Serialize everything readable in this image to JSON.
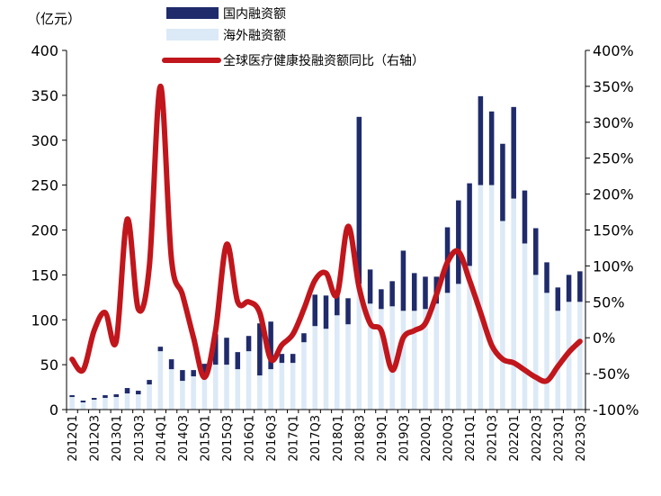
{
  "chart_data": {
    "type": "bar+line",
    "unit_label": "（亿元）",
    "categories": [
      "2012Q1",
      "2012Q2",
      "2012Q3",
      "2012Q4",
      "2013Q1",
      "2013Q2",
      "2013Q3",
      "2013Q4",
      "2014Q1",
      "2014Q2",
      "2014Q3",
      "2014Q4",
      "2015Q1",
      "2015Q2",
      "2015Q3",
      "2015Q4",
      "2016Q1",
      "2016Q2",
      "2016Q3",
      "2016Q4",
      "2017Q1",
      "2017Q2",
      "2017Q3",
      "2017Q4",
      "2018Q1",
      "2018Q2",
      "2018Q3",
      "2018Q4",
      "2019Q1",
      "2019Q2",
      "2019Q3",
      "2019Q4",
      "2020Q1",
      "2020Q2",
      "2020Q3",
      "2020Q4",
      "2021Q1",
      "2021Q2",
      "2021Q3",
      "2021Q4",
      "2022Q1",
      "2022Q2",
      "2022Q3",
      "2022Q4",
      "2023Q1",
      "2023Q2",
      "2023Q3"
    ],
    "x_tick_labels": [
      "2012Q1",
      "2012Q3",
      "2013Q1",
      "2013Q3",
      "2014Q1",
      "2014Q3",
      "2015Q1",
      "2015Q3",
      "2016Q1",
      "2016Q3",
      "2017Q1",
      "2017Q3",
      "2018Q1",
      "2018Q3",
      "2019Q1",
      "2019Q3",
      "2020Q1",
      "2020Q3",
      "2021Q1",
      "2021Q3",
      "2022Q1",
      "2022Q3",
      "2023Q1",
      "2023Q3"
    ],
    "series": [
      {
        "name": "海外融资额",
        "kind": "bar-base",
        "color": "#dce9f6",
        "values": [
          14,
          8,
          11,
          13,
          14,
          18,
          17,
          28,
          65,
          45,
          32,
          37,
          38,
          50,
          50,
          45,
          65,
          38,
          45,
          52,
          52,
          75,
          93,
          90,
          105,
          95,
          140,
          118,
          112,
          115,
          110,
          110,
          112,
          118,
          130,
          140,
          160,
          250,
          250,
          210,
          235,
          185,
          150,
          130,
          110,
          120,
          120
        ]
      },
      {
        "name": "国内融资额",
        "kind": "bar-stack",
        "color": "#1f2b6b",
        "values": [
          2,
          2,
          2,
          3,
          3,
          6,
          4,
          5,
          5,
          11,
          12,
          7,
          13,
          34,
          30,
          19,
          17,
          58,
          53,
          10,
          10,
          10,
          35,
          37,
          22,
          29,
          186,
          38,
          22,
          28,
          67,
          42,
          36,
          30,
          73,
          93,
          92,
          99,
          82,
          86,
          102,
          59,
          52,
          34,
          26,
          30,
          34
        ]
      },
      {
        "name": "全球医疗健康投融资额同比（右轴）",
        "kind": "line",
        "axis": "right",
        "color": "#c0161c",
        "values": [
          -30,
          -45,
          10,
          35,
          -5,
          165,
          40,
          100,
          350,
          110,
          60,
          0,
          -55,
          10,
          130,
          50,
          50,
          35,
          -30,
          -10,
          5,
          40,
          80,
          90,
          60,
          155,
          70,
          20,
          10,
          -45,
          0,
          10,
          20,
          60,
          105,
          120,
          80,
          35,
          -10,
          -30,
          -35,
          -45,
          -55,
          -60,
          -40,
          -20,
          -5
        ]
      }
    ],
    "y_left": {
      "min": 0,
      "max": 400,
      "step": 50,
      "ticks": [
        "0",
        "50",
        "100",
        "150",
        "200",
        "250",
        "300",
        "350",
        "400"
      ]
    },
    "y_right": {
      "min": -100,
      "max": 400,
      "step": 50,
      "ticks": [
        "-100%",
        "-50%",
        "0%",
        "50%",
        "100%",
        "150%",
        "200%",
        "250%",
        "300%",
        "350%",
        "400%"
      ]
    },
    "legend": {
      "position": "top-center",
      "items": [
        {
          "label": "国内融资额",
          "swatch": "bar",
          "color": "#1f2b6b"
        },
        {
          "label": "海外融资额",
          "swatch": "bar",
          "color": "#dce9f6"
        },
        {
          "label": "全球医疗健康投融资额同比（右轴）",
          "swatch": "line",
          "color": "#c0161c"
        }
      ]
    }
  }
}
